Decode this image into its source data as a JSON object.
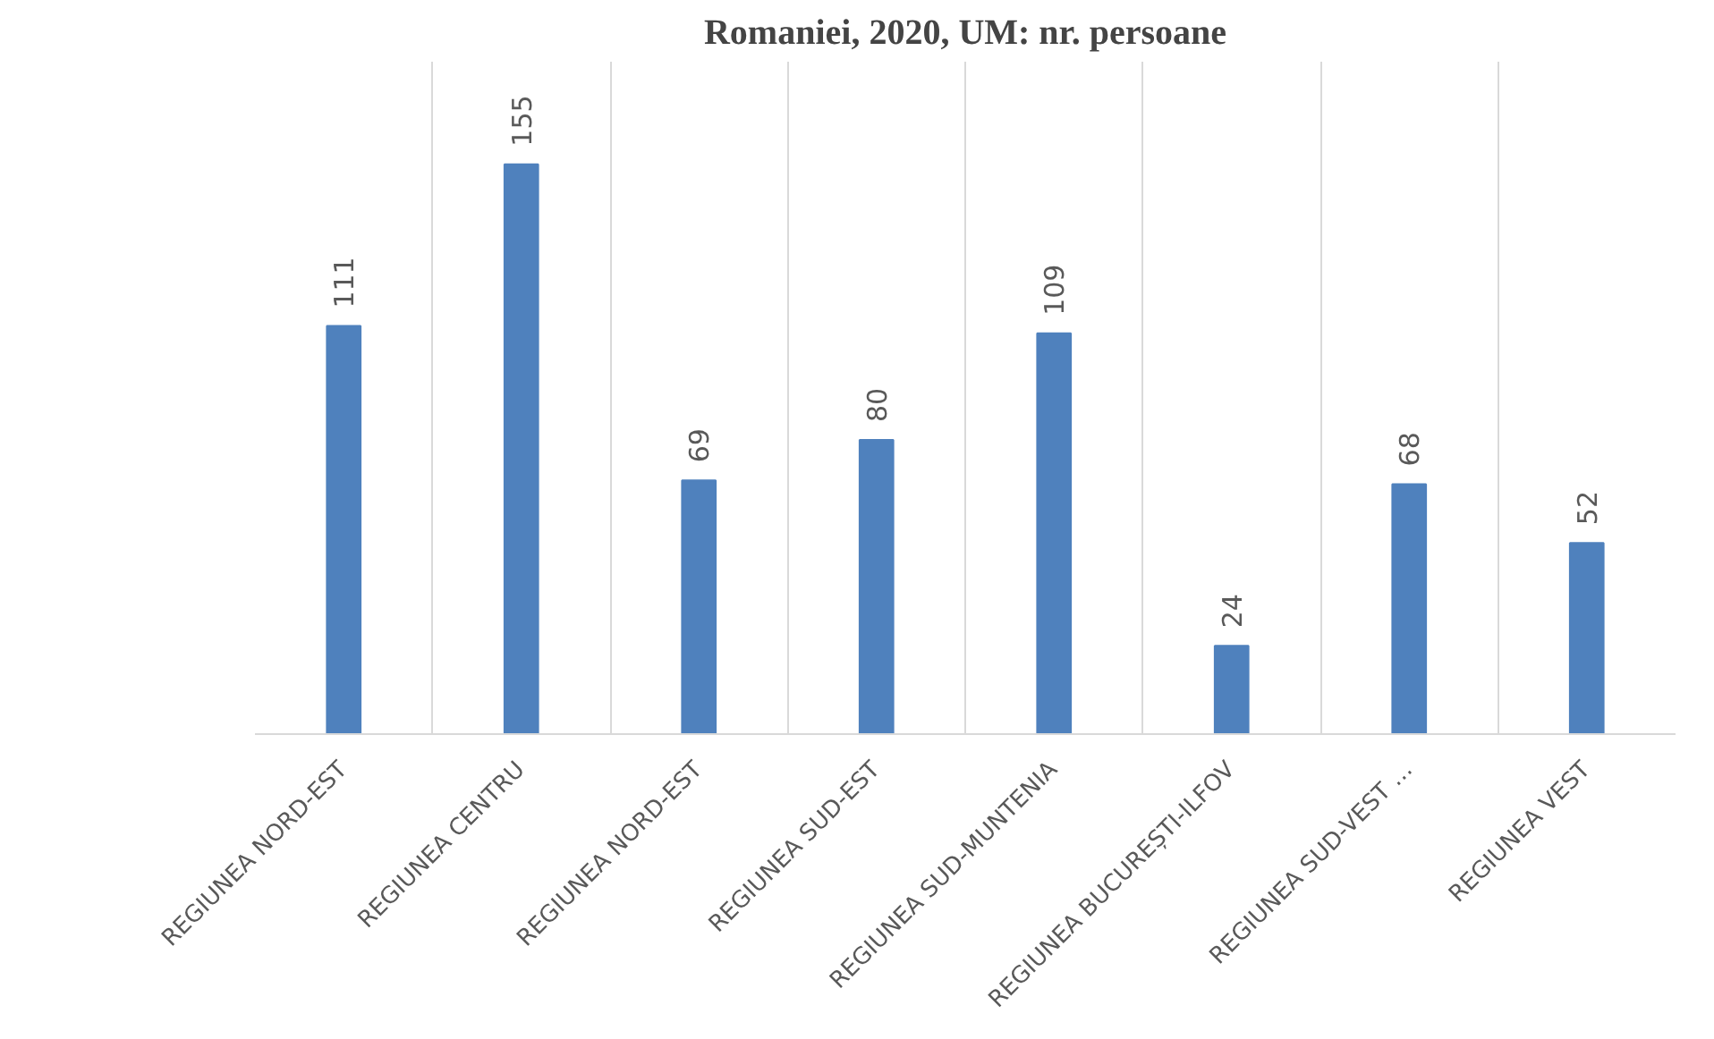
{
  "chart_data": {
    "type": "bar",
    "title": "Romaniei, 2020, UM: nr. persoane",
    "categories": [
      "REGIUNEA NORD-EST",
      "REGIUNEA CENTRU",
      "REGIUNEA NORD-EST",
      "REGIUNEA SUD-EST",
      "REGIUNEA SUD-MUNTENIA",
      "REGIUNEA BUCUREȘTI-ILFOV",
      "REGIUNEA SUD-VEST …",
      "REGIUNEA VEST"
    ],
    "values": [
      111,
      155,
      69,
      80,
      109,
      24,
      68,
      52
    ],
    "color": "#4f81bd",
    "data_labels": true,
    "grid": "x"
  }
}
